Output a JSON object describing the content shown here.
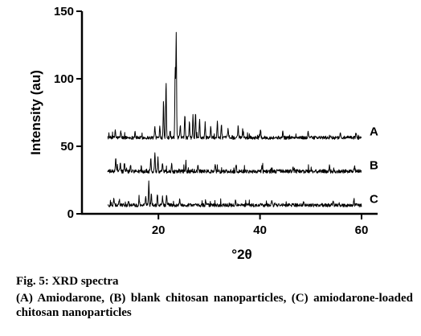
{
  "chart_data": {
    "type": "line",
    "xlabel": "°2θ",
    "ylabel": "Intensity (au)",
    "xlim": [
      10,
      60
    ],
    "ylim": [
      0,
      150
    ],
    "x_ticks": [
      20,
      40,
      60
    ],
    "y_ticks": [
      0,
      50,
      100,
      150
    ],
    "grid": false,
    "legend": "none",
    "series": [
      {
        "name": "A",
        "baseline": 56,
        "noise": 2.5,
        "peaks": [
          [
            11.5,
            62
          ],
          [
            12.6,
            61
          ],
          [
            15.4,
            61
          ],
          [
            19.3,
            65
          ],
          [
            20.3,
            63
          ],
          [
            21.0,
            84
          ],
          [
            21.5,
            97
          ],
          [
            22.3,
            62
          ],
          [
            23.3,
            107
          ],
          [
            23.5,
            132
          ],
          [
            24.3,
            65
          ],
          [
            25.2,
            73
          ],
          [
            26.1,
            67
          ],
          [
            26.8,
            72
          ],
          [
            27.3,
            75
          ],
          [
            28.1,
            69
          ],
          [
            29.2,
            67
          ],
          [
            30.3,
            64
          ],
          [
            31.6,
            68
          ],
          [
            32.4,
            66
          ],
          [
            33.7,
            63
          ],
          [
            35.7,
            64
          ],
          [
            36.6,
            62
          ],
          [
            40.1,
            62
          ],
          [
            44.5,
            61
          ],
          [
            49.5,
            61
          ],
          [
            55.8,
            60
          ],
          [
            58.9,
            60
          ]
        ]
      },
      {
        "name": "B",
        "baseline": 31,
        "noise": 2.8,
        "peaks": [
          [
            11.6,
            41
          ],
          [
            12.5,
            38
          ],
          [
            13.3,
            37
          ],
          [
            14.5,
            36
          ],
          [
            18.5,
            40
          ],
          [
            19.3,
            46
          ],
          [
            19.9,
            42
          ],
          [
            20.8,
            38
          ],
          [
            22.6,
            37
          ],
          [
            25.4,
            37
          ],
          [
            27.8,
            36
          ],
          [
            31.2,
            36
          ],
          [
            35.3,
            36
          ],
          [
            40.4,
            35
          ],
          [
            46.5,
            35
          ],
          [
            53.7,
            35
          ],
          [
            58.6,
            35
          ]
        ]
      },
      {
        "name": "C",
        "baseline": 6,
        "noise": 2.6,
        "peaks": [
          [
            11.2,
            11
          ],
          [
            12.3,
            10
          ],
          [
            14.1,
            10
          ],
          [
            16.2,
            10
          ],
          [
            17.5,
            12
          ],
          [
            18.1,
            23
          ],
          [
            18.6,
            15
          ],
          [
            19.8,
            14
          ],
          [
            20.8,
            13
          ],
          [
            21.6,
            14
          ],
          [
            24.2,
            11
          ],
          [
            29.3,
            10
          ],
          [
            35.2,
            10
          ],
          [
            42.3,
            10
          ],
          [
            48.6,
            10
          ],
          [
            54.4,
            10
          ],
          [
            58.5,
            11
          ]
        ]
      }
    ]
  },
  "caption": {
    "title": "Fig. 5: XRD spectra",
    "body": "(A) Amiodarone, (B) blank chitosan nanoparticles, (C) amiodarone-loaded chitosan nanoparticles"
  }
}
